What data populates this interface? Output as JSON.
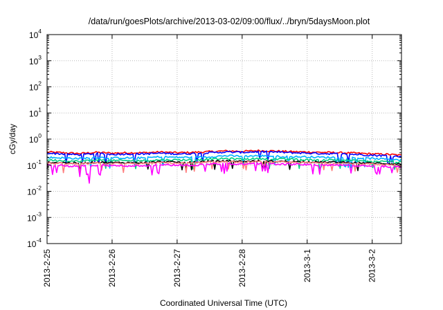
{
  "chart_data": {
    "type": "line",
    "title": "/data/run/goesPlots/archive/2013-03-02/09:00/flux/../bryn/5daysMoon.plot",
    "xlabel": "Coordinated Universal Time (UTC)",
    "ylabel": "cGy/day",
    "y_scale": "log",
    "ylim": [
      0.0001,
      10000
    ],
    "y_ticks": [
      {
        "base": "10",
        "exp": "-4"
      },
      {
        "base": "10",
        "exp": "-3"
      },
      {
        "base": "10",
        "exp": "-2"
      },
      {
        "base": "10",
        "exp": "-1"
      },
      {
        "base": "10",
        "exp": "0"
      },
      {
        "base": "10",
        "exp": "1"
      },
      {
        "base": "10",
        "exp": "2"
      },
      {
        "base": "10",
        "exp": "3"
      },
      {
        "base": "10",
        "exp": "4"
      }
    ],
    "x_ticks": [
      "2013-2-25",
      "2013-2-26",
      "2013-2-27",
      "2013-2-28",
      "2013-3-1",
      "2013-3-2"
    ],
    "xlim_days": [
      0,
      5.45
    ],
    "grid": true,
    "legend": "none",
    "x_samples_days": [
      0,
      0.25,
      0.5,
      0.75,
      1,
      1.25,
      1.5,
      1.75,
      2,
      2.25,
      2.5,
      2.75,
      3,
      3.25,
      3.5,
      3.75,
      4,
      4.25,
      4.5,
      4.75,
      5,
      5.25,
      5.45
    ],
    "series": [
      {
        "color": "#ff0000",
        "values": [
          0.32,
          0.3,
          0.28,
          0.31,
          0.29,
          0.3,
          0.3,
          0.32,
          0.3,
          0.31,
          0.33,
          0.35,
          0.34,
          0.36,
          0.35,
          0.33,
          0.32,
          0.31,
          0.3,
          0.29,
          0.27,
          0.26,
          0.24
        ]
      },
      {
        "color": "#0000ff",
        "values": [
          0.29,
          0.27,
          0.25,
          0.28,
          0.26,
          0.27,
          0.27,
          0.29,
          0.27,
          0.28,
          0.3,
          0.32,
          0.31,
          0.33,
          0.32,
          0.3,
          0.29,
          0.28,
          0.27,
          0.26,
          0.24,
          0.23,
          0.21
        ]
      },
      {
        "color": "#00b0ff",
        "values": [
          0.2,
          0.19,
          0.18,
          0.2,
          0.19,
          0.19,
          0.19,
          0.21,
          0.2,
          0.2,
          0.21,
          0.23,
          0.22,
          0.23,
          0.22,
          0.21,
          0.21,
          0.2,
          0.2,
          0.19,
          0.18,
          0.17,
          0.16
        ]
      },
      {
        "color": "#00d080",
        "values": [
          0.16,
          0.15,
          0.14,
          0.16,
          0.15,
          0.15,
          0.15,
          0.16,
          0.16,
          0.16,
          0.17,
          0.18,
          0.17,
          0.18,
          0.17,
          0.17,
          0.16,
          0.16,
          0.16,
          0.15,
          0.14,
          0.14,
          0.13
        ]
      },
      {
        "color": "#000000",
        "values": [
          0.13,
          0.125,
          0.12,
          0.13,
          0.125,
          0.125,
          0.125,
          0.135,
          0.13,
          0.13,
          0.14,
          0.145,
          0.14,
          0.145,
          0.14,
          0.14,
          0.135,
          0.13,
          0.13,
          0.125,
          0.12,
          0.115,
          0.11
        ]
      },
      {
        "color": "#ff8080",
        "values": [
          0.12,
          0.115,
          0.11,
          0.12,
          0.115,
          0.115,
          0.115,
          0.125,
          0.12,
          0.12,
          0.13,
          0.135,
          0.13,
          0.135,
          0.13,
          0.13,
          0.125,
          0.12,
          0.12,
          0.115,
          0.11,
          0.105,
          0.1
        ]
      },
      {
        "color": "#ff00ff",
        "values": [
          0.1,
          0.095,
          0.09,
          0.1,
          0.095,
          0.095,
          0.095,
          0.105,
          0.1,
          0.1,
          0.11,
          0.115,
          0.11,
          0.115,
          0.11,
          0.11,
          0.105,
          0.1,
          0.1,
          0.095,
          0.09,
          0.088,
          0.085
        ]
      }
    ]
  }
}
